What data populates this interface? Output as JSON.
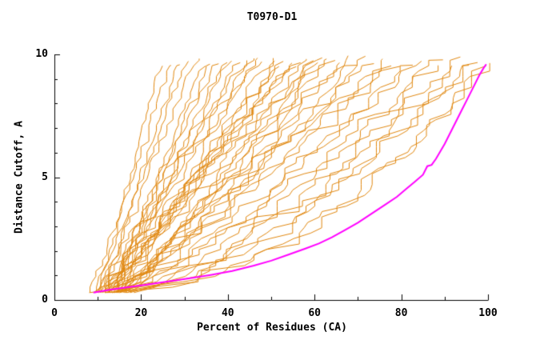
{
  "chart_data": {
    "type": "line",
    "title": "T0970-D1",
    "xlabel": "Percent of Residues (CA)",
    "ylabel": "Distance Cutoff, A",
    "xlim": [
      0,
      100
    ],
    "ylim": [
      0,
      10
    ],
    "xticks": [
      0,
      20,
      40,
      60,
      80,
      100
    ],
    "xticks_minor": [
      10,
      30,
      50,
      70,
      90
    ],
    "yticks": [
      0,
      5,
      10
    ],
    "yticks_minor": [
      1,
      2,
      3,
      4,
      6,
      7,
      8,
      9
    ],
    "grid": false,
    "legend": "none",
    "colors": {
      "model_lines": "#e0870f",
      "highlight_line": "#ff00ff",
      "axis": "#000000",
      "background": "#ffffff"
    },
    "highlight_series": {
      "name": "selected-model",
      "color": "#ff00ff",
      "points": [
        [
          9,
          0.3
        ],
        [
          13,
          0.42
        ],
        [
          17,
          0.52
        ],
        [
          21,
          0.62
        ],
        [
          26,
          0.75
        ],
        [
          31,
          0.88
        ],
        [
          36,
          1.02
        ],
        [
          41,
          1.18
        ],
        [
          46,
          1.4
        ],
        [
          50,
          1.6
        ],
        [
          54,
          1.85
        ],
        [
          58,
          2.1
        ],
        [
          61,
          2.3
        ],
        [
          64,
          2.55
        ],
        [
          67,
          2.85
        ],
        [
          70,
          3.15
        ],
        [
          73,
          3.5
        ],
        [
          76,
          3.85
        ],
        [
          79,
          4.2
        ],
        [
          81,
          4.5
        ],
        [
          83,
          4.8
        ],
        [
          85,
          5.1
        ],
        [
          86,
          5.45
        ],
        [
          87,
          5.5
        ],
        [
          88,
          5.75
        ],
        [
          89,
          6.05
        ],
        [
          90,
          6.35
        ],
        [
          91,
          6.7
        ],
        [
          92,
          7.05
        ],
        [
          93,
          7.4
        ],
        [
          94,
          7.75
        ],
        [
          95,
          8.1
        ],
        [
          96,
          8.45
        ],
        [
          97,
          8.8
        ],
        [
          98,
          9.15
        ],
        [
          99,
          9.45
        ],
        [
          99.6,
          9.6
        ]
      ]
    },
    "model_curves": {
      "name": "server-model-curves",
      "color": "#e0870f",
      "count": 46,
      "y_start": 0.3,
      "param_format": [
        "x_at_y_start",
        "x_at_y_top",
        "shape_exponent"
      ],
      "params": [
        [
          10,
          25,
          1.0
        ],
        [
          8,
          27,
          0.9
        ],
        [
          12,
          29,
          1.1
        ],
        [
          9,
          31,
          0.95
        ],
        [
          11,
          33,
          1.05
        ],
        [
          13,
          35,
          1.0
        ],
        [
          10,
          36,
          0.85
        ],
        [
          14,
          38,
          1.1
        ],
        [
          9,
          40,
          0.9
        ],
        [
          12,
          41,
          1.0
        ],
        [
          15,
          43,
          1.15
        ],
        [
          10,
          44,
          0.9
        ],
        [
          11,
          46,
          1.05
        ],
        [
          13,
          47,
          0.95
        ],
        [
          12,
          48,
          1.1
        ],
        [
          14,
          50,
          1.0
        ],
        [
          10,
          51,
          0.8
        ],
        [
          15,
          52,
          1.1
        ],
        [
          11,
          53,
          0.9
        ],
        [
          16,
          55,
          1.05
        ],
        [
          12,
          56,
          0.95
        ],
        [
          13,
          57,
          1.15
        ],
        [
          14,
          58,
          0.85
        ],
        [
          10,
          60,
          1.0
        ],
        [
          15,
          61,
          0.9
        ],
        [
          11,
          62,
          1.1
        ],
        [
          16,
          63,
          0.95
        ],
        [
          12,
          65,
          1.05
        ],
        [
          13,
          66,
          0.9
        ],
        [
          15,
          68,
          1.0
        ],
        [
          14,
          70,
          0.8
        ],
        [
          16,
          72,
          1.05
        ],
        [
          12,
          74,
          0.9
        ],
        [
          15,
          76,
          1.0
        ],
        [
          13,
          78,
          0.85
        ],
        [
          16,
          80,
          0.95
        ],
        [
          14,
          83,
          0.75
        ],
        [
          17,
          85,
          0.9
        ],
        [
          15,
          88,
          0.7
        ],
        [
          13,
          90,
          0.8
        ],
        [
          16,
          92,
          0.65
        ],
        [
          18,
          94,
          0.75
        ],
        [
          14,
          96,
          0.6
        ],
        [
          17,
          98,
          0.65
        ],
        [
          12,
          100,
          0.5
        ],
        [
          8,
          100,
          0.45
        ]
      ]
    }
  }
}
